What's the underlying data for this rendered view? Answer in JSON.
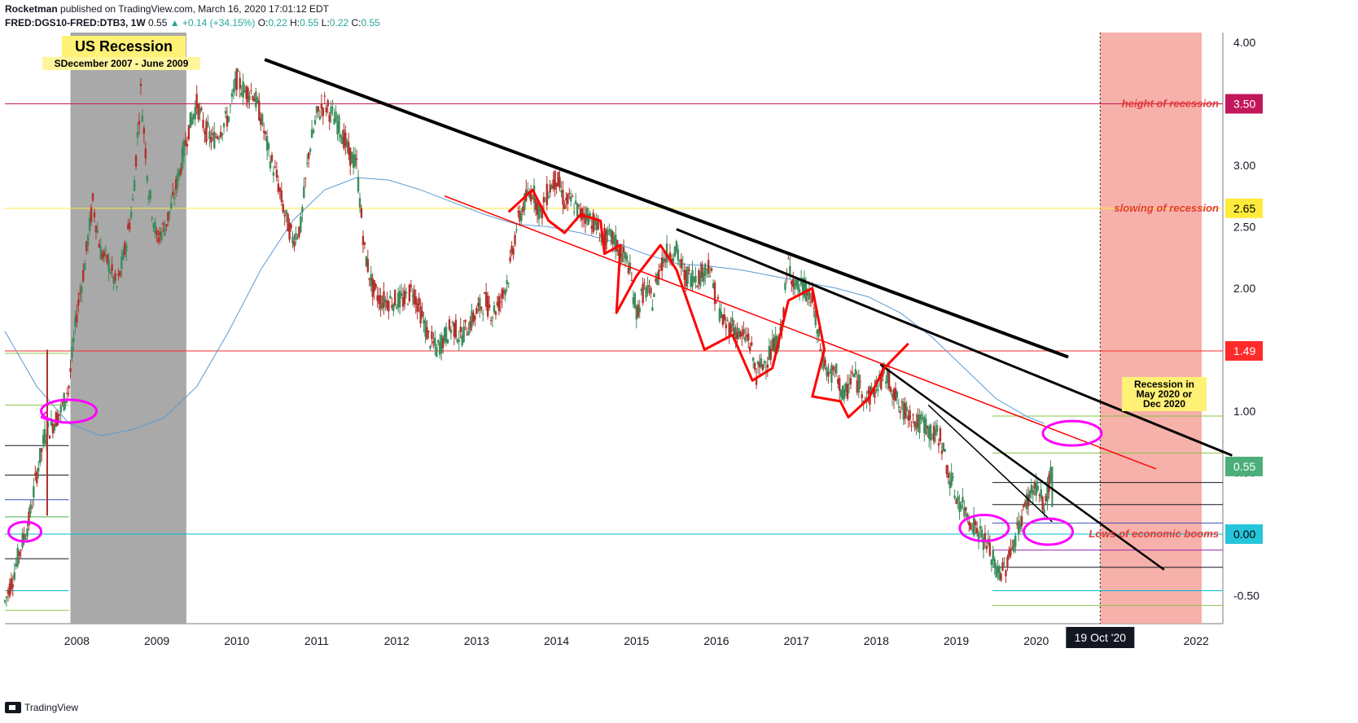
{
  "header": {
    "author": "Rocketman",
    "published": "published on TradingView.com, March 16, 2020 17:01:12 EDT",
    "symbol": "FRED:DGS10-FRED:DTB3, 1W",
    "last": "0.55",
    "change": "▲ +0.14 (+34.15%)",
    "o_label": "O:",
    "o_val": "0.22",
    "h_label": "H:",
    "h_val": "0.55",
    "l_label": "L:",
    "l_val": "0.22",
    "c_label": "C:",
    "c_val": "0.55"
  },
  "footer": {
    "brand": "TradingView"
  },
  "colors": {
    "up": "#26a69a",
    "candle_up": "#3c8c5c",
    "candle_down": "#b2312c",
    "ma": "#5b9bd5",
    "annot_red": "#ff0000",
    "annot_magenta": "#ff00ff",
    "recession_shade": "#a9a9a9",
    "forecast_shade": "#f5a39b"
  },
  "annotations": {
    "recession_title": "US Recession",
    "recession_dates": "SDecember 2007 - June 2009",
    "height_label": "height of recession",
    "slowing_label": "slowing of recession",
    "lows_label": "Lows of economic booms",
    "forecast_box": [
      "Recession in",
      "May 2020 or",
      "Dec 2020"
    ],
    "cursor_date": "19 Oct '20"
  },
  "chart_data": {
    "type": "candlestick",
    "title": "FRED:DGS10-FRED:DTB3, 1W",
    "x_ticks": [
      "2008",
      "2009",
      "2010",
      "2011",
      "2012",
      "2013",
      "2014",
      "2015",
      "2016",
      "2017",
      "2018",
      "2019",
      "2020",
      "2022"
    ],
    "y_ticks": [
      "4.00",
      "3.50",
      "3.00",
      "2.50",
      "2.00",
      "1.50",
      "1.00",
      "0.50",
      "0.00",
      "-0.50"
    ],
    "ylim": [
      -0.75,
      4.05
    ],
    "xlim": [
      2007.1,
      2022.4
    ],
    "price_labels": [
      "3.50",
      "2.65",
      "1.49",
      "0.55",
      "0.00"
    ],
    "last_price": 0.55,
    "recession_shade": {
      "from": 2007.92,
      "to": 2009.37
    },
    "forecast_shade": {
      "from": 2020.8,
      "to": 2022.07
    },
    "series_close": [
      [
        2007.1,
        -0.55
      ],
      [
        2007.2,
        -0.35
      ],
      [
        2007.3,
        -0.1
      ],
      [
        2007.4,
        0.1
      ],
      [
        2007.5,
        0.5
      ],
      [
        2007.6,
        0.8
      ],
      [
        2007.7,
        0.9
      ],
      [
        2007.8,
        1.0
      ],
      [
        2007.9,
        1.2
      ],
      [
        2008.0,
        1.8
      ],
      [
        2008.1,
        2.2
      ],
      [
        2008.2,
        2.7
      ],
      [
        2008.3,
        2.3
      ],
      [
        2008.4,
        2.2
      ],
      [
        2008.5,
        2.0
      ],
      [
        2008.6,
        2.3
      ],
      [
        2008.7,
        2.7
      ],
      [
        2008.8,
        3.6
      ],
      [
        2008.9,
        2.8
      ],
      [
        2009.0,
        2.4
      ],
      [
        2009.1,
        2.5
      ],
      [
        2009.2,
        2.7
      ],
      [
        2009.3,
        3.0
      ],
      [
        2009.4,
        3.3
      ],
      [
        2009.5,
        3.5
      ],
      [
        2009.6,
        3.3
      ],
      [
        2009.7,
        3.2
      ],
      [
        2009.8,
        3.3
      ],
      [
        2009.9,
        3.4
      ],
      [
        2010.0,
        3.7
      ],
      [
        2010.1,
        3.6
      ],
      [
        2010.2,
        3.6
      ],
      [
        2010.3,
        3.4
      ],
      [
        2010.4,
        3.1
      ],
      [
        2010.5,
        2.9
      ],
      [
        2010.6,
        2.6
      ],
      [
        2010.7,
        2.4
      ],
      [
        2010.8,
        2.5
      ],
      [
        2010.9,
        3.1
      ],
      [
        2011.0,
        3.4
      ],
      [
        2011.1,
        3.5
      ],
      [
        2011.2,
        3.4
      ],
      [
        2011.3,
        3.3
      ],
      [
        2011.4,
        3.1
      ],
      [
        2011.5,
        3.0
      ],
      [
        2011.6,
        2.3
      ],
      [
        2011.7,
        2.0
      ],
      [
        2011.8,
        1.9
      ],
      [
        2011.9,
        1.9
      ],
      [
        2012.0,
        1.9
      ],
      [
        2012.1,
        1.9
      ],
      [
        2012.2,
        2.0
      ],
      [
        2012.3,
        1.8
      ],
      [
        2012.4,
        1.6
      ],
      [
        2012.5,
        1.5
      ],
      [
        2012.6,
        1.6
      ],
      [
        2012.7,
        1.7
      ],
      [
        2012.8,
        1.6
      ],
      [
        2012.9,
        1.7
      ],
      [
        2013.0,
        1.8
      ],
      [
        2013.1,
        1.9
      ],
      [
        2013.2,
        1.8
      ],
      [
        2013.3,
        1.9
      ],
      [
        2013.4,
        2.1
      ],
      [
        2013.5,
        2.5
      ],
      [
        2013.6,
        2.7
      ],
      [
        2013.7,
        2.8
      ],
      [
        2013.8,
        2.6
      ],
      [
        2013.9,
        2.8
      ],
      [
        2014.0,
        2.9
      ],
      [
        2014.1,
        2.7
      ],
      [
        2014.2,
        2.7
      ],
      [
        2014.3,
        2.6
      ],
      [
        2014.4,
        2.6
      ],
      [
        2014.5,
        2.5
      ],
      [
        2014.6,
        2.4
      ],
      [
        2014.7,
        2.4
      ],
      [
        2014.8,
        2.3
      ],
      [
        2014.9,
        2.2
      ],
      [
        2015.0,
        1.8
      ],
      [
        2015.1,
        2.0
      ],
      [
        2015.2,
        1.9
      ],
      [
        2015.3,
        2.2
      ],
      [
        2015.4,
        2.3
      ],
      [
        2015.5,
        2.3
      ],
      [
        2015.6,
        2.1
      ],
      [
        2015.7,
        2.1
      ],
      [
        2015.8,
        2.1
      ],
      [
        2015.9,
        2.2
      ],
      [
        2016.0,
        1.9
      ],
      [
        2016.1,
        1.7
      ],
      [
        2016.2,
        1.7
      ],
      [
        2016.3,
        1.6
      ],
      [
        2016.4,
        1.6
      ],
      [
        2016.5,
        1.3
      ],
      [
        2016.6,
        1.4
      ],
      [
        2016.7,
        1.5
      ],
      [
        2016.8,
        1.6
      ],
      [
        2016.9,
        2.2
      ],
      [
        2017.0,
        2.0
      ],
      [
        2017.1,
        2.0
      ],
      [
        2017.2,
        1.9
      ],
      [
        2017.3,
        1.5
      ],
      [
        2017.4,
        1.3
      ],
      [
        2017.5,
        1.3
      ],
      [
        2017.6,
        1.1
      ],
      [
        2017.7,
        1.3
      ],
      [
        2017.8,
        1.2
      ],
      [
        2017.9,
        1.1
      ],
      [
        2018.0,
        1.2
      ],
      [
        2018.1,
        1.3
      ],
      [
        2018.2,
        1.2
      ],
      [
        2018.3,
        1.0
      ],
      [
        2018.4,
        1.0
      ],
      [
        2018.5,
        0.9
      ],
      [
        2018.6,
        0.9
      ],
      [
        2018.7,
        0.8
      ],
      [
        2018.8,
        0.8
      ],
      [
        2018.9,
        0.5
      ],
      [
        2019.0,
        0.3
      ],
      [
        2019.1,
        0.2
      ],
      [
        2019.2,
        0.1
      ],
      [
        2019.3,
        0.0
      ],
      [
        2019.4,
        -0.1
      ],
      [
        2019.5,
        -0.3
      ],
      [
        2019.6,
        -0.3
      ],
      [
        2019.7,
        -0.1
      ],
      [
        2019.8,
        0.1
      ],
      [
        2019.9,
        0.3
      ],
      [
        2020.0,
        0.4
      ],
      [
        2020.1,
        0.2
      ],
      [
        2020.2,
        0.55
      ]
    ]
  }
}
